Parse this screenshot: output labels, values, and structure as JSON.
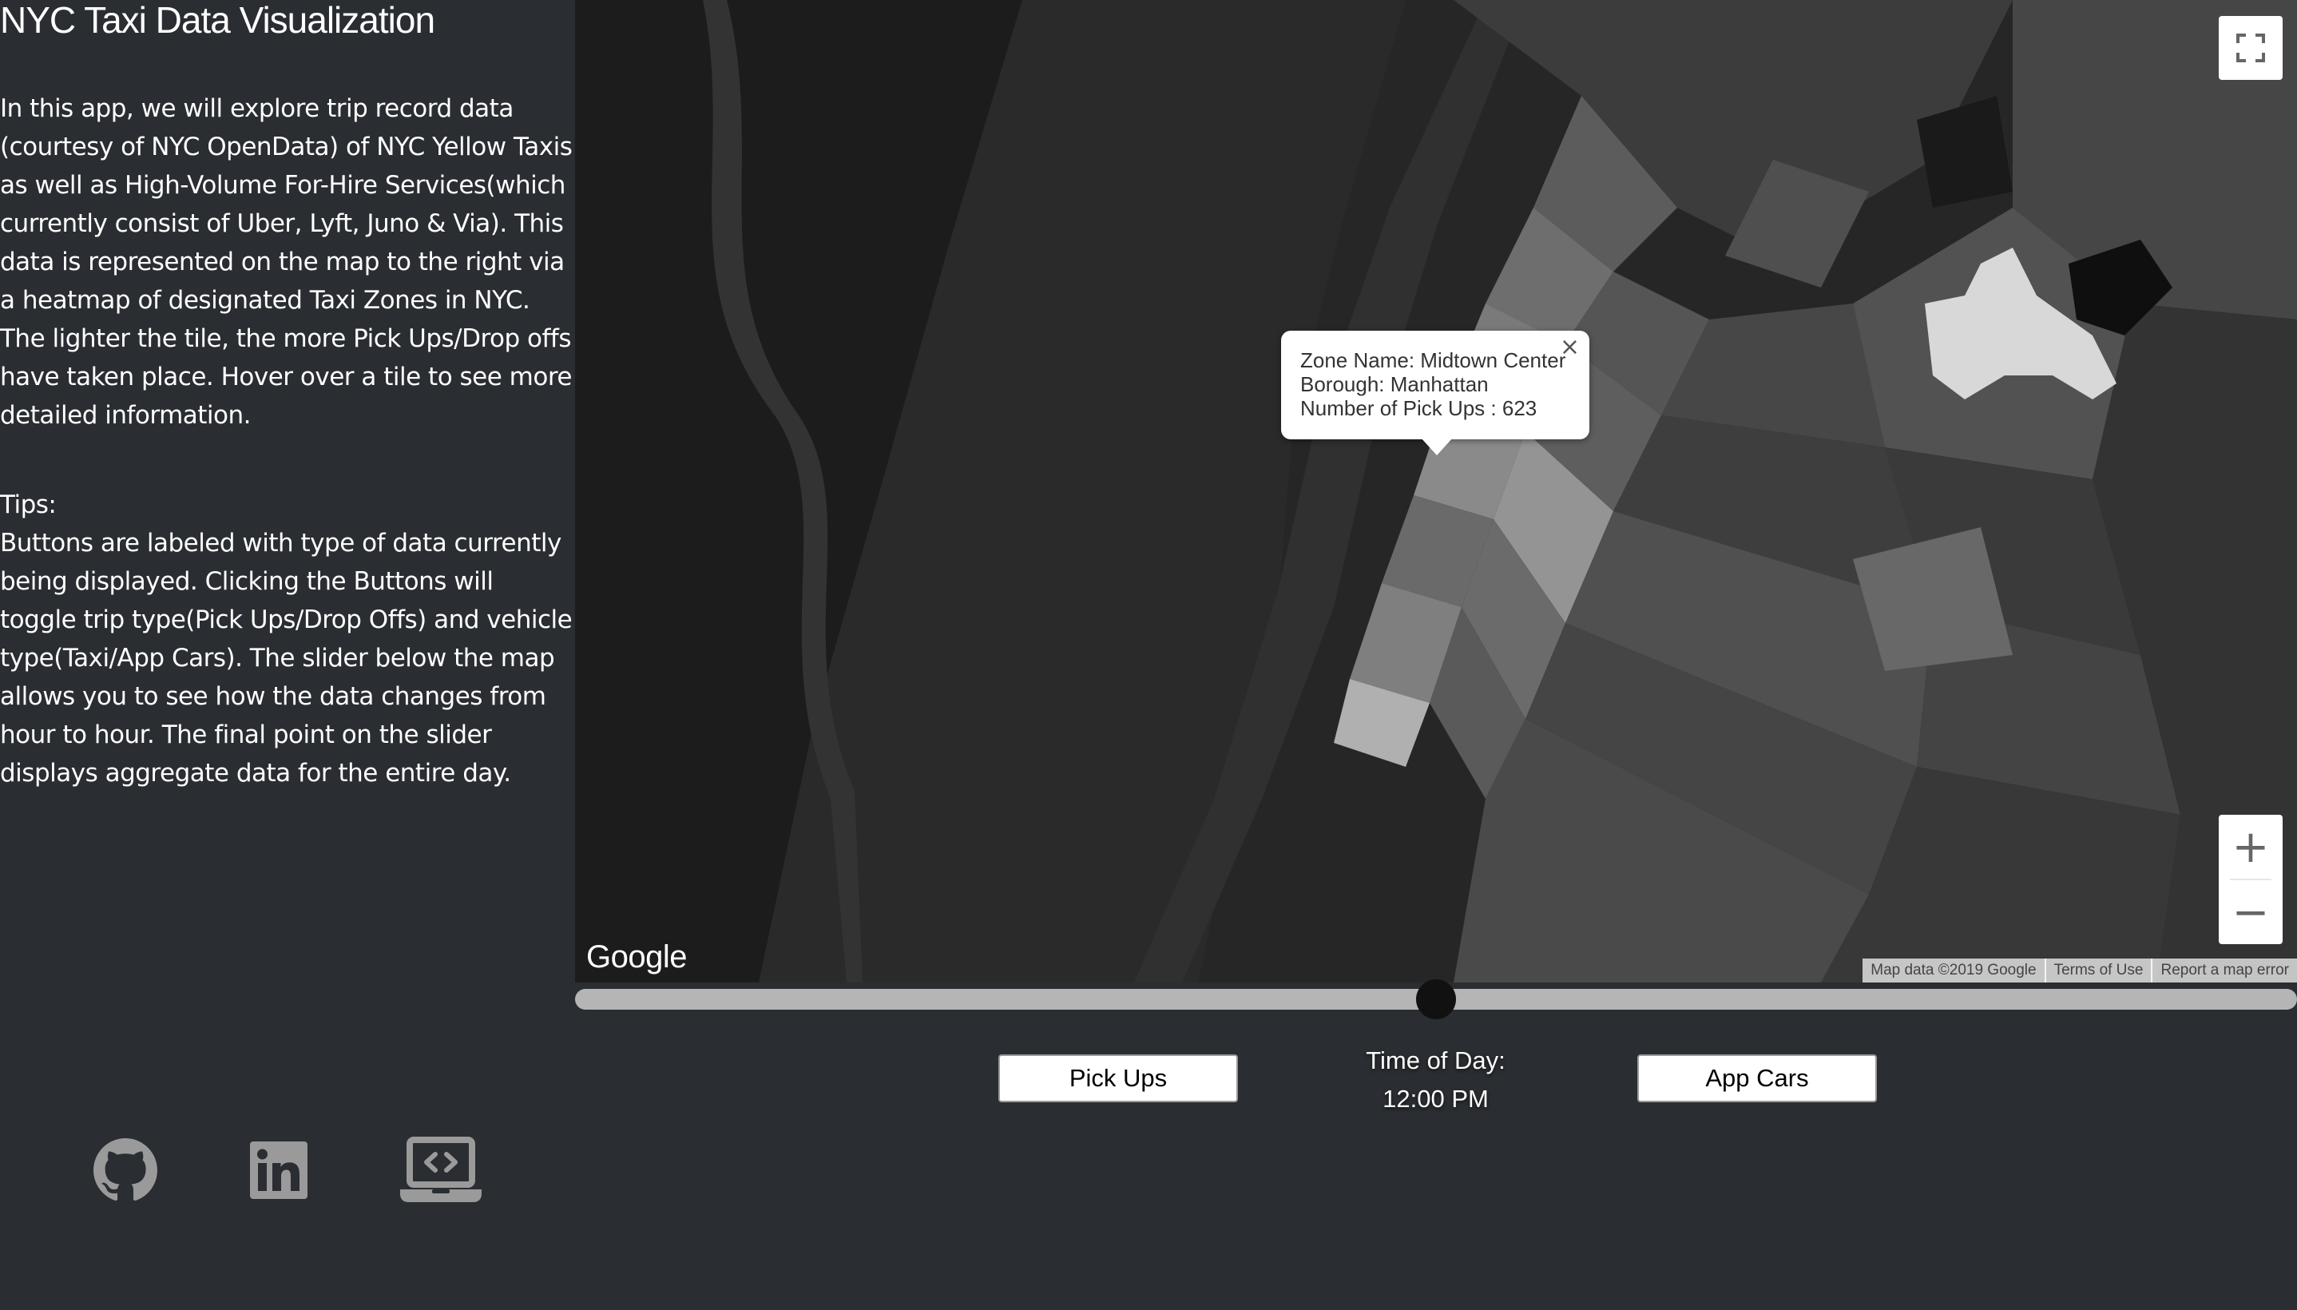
{
  "header": {
    "title": "NYC Taxi Data Visualization"
  },
  "intro": {
    "text": "In this app, we will explore trip record data (courtesy of NYC OpenData) of NYC Yellow Taxis as well as High-Volume For-Hire Services(which currently consist of Uber, Lyft, Juno & Via). This data is represented on the map to the right via a heatmap of designated Taxi Zones in NYC. The lighter the tile, the more Pick Ups/Drop offs have taken place. Hover over a tile to see more detailed information."
  },
  "tips": {
    "label": "Tips:",
    "text": "Buttons are labeled with type of data currently being displayed. Clicking the Buttons will toggle trip type(Pick Ups/Drop Offs) and vehicle type(Taxi/App Cars). The slider below the map allows you to see how the data changes from hour to hour. The final point on the slider displays aggregate data for the entire day."
  },
  "map": {
    "logo_text": "Google",
    "attribution": "Map data ©2019 Google",
    "terms_label": "Terms of Use",
    "report_label": "Report a map error",
    "zoom_in_label": "+",
    "zoom_out_label": "−",
    "tooltip": {
      "zone_line": "Zone Name: Midtown Center",
      "borough_line": "Borough: Manhattan",
      "count_line": "Number of Pick Ups : 623",
      "close_label": "×"
    }
  },
  "slider": {
    "value_fraction": 0.5
  },
  "controls": {
    "trip_type_label": "Pick Ups",
    "vehicle_type_label": "App Cars",
    "time_title": "Time of Day:",
    "time_value": "12:00 PM"
  },
  "social": {
    "icons": [
      "github-icon",
      "linkedin-icon",
      "laptop-code-icon"
    ]
  },
  "colors": {
    "page_background": "#2a2d31",
    "map_background": "#1f1f1f",
    "slider_track": "#b5b5b5",
    "slider_thumb": "#111111",
    "icon_gray": "#9a9a9a"
  }
}
